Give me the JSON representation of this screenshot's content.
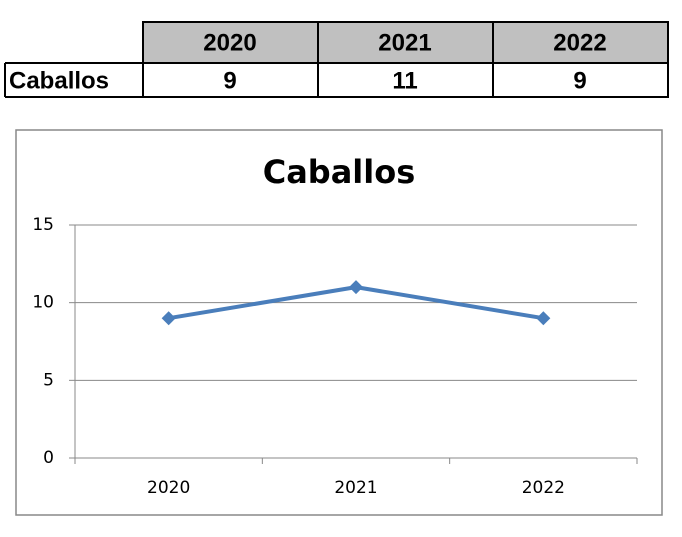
{
  "chart_data": {
    "type": "line",
    "title": "Caballos",
    "categories": [
      "2020",
      "2021",
      "2022"
    ],
    "series": [
      {
        "name": "Caballos",
        "color": "#4a7ebb",
        "values": [
          9,
          11,
          9
        ]
      }
    ],
    "ylim": [
      0,
      15
    ],
    "yticks": [
      0,
      5,
      10,
      15
    ],
    "grid": true
  }
}
